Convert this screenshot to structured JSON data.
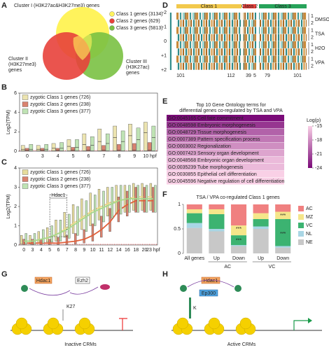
{
  "panels": [
    "A",
    "B",
    "C",
    "D",
    "E",
    "F",
    "G",
    "H"
  ],
  "a": {
    "title": "Cluster I (H3K27ac&H3K27me3) genes",
    "cluster2": [
      "Cluster II",
      "(H3K27me3)",
      "genes"
    ],
    "cluster3": [
      "Cluster III",
      "(H3K27ac)",
      "genes"
    ],
    "legend": [
      {
        "name": "Class 1 genes (3134)",
        "color": "#fff35c"
      },
      {
        "name": "Class 2 genes (629)",
        "color": "#e8413b"
      },
      {
        "name": "Class 3 genes (5813)",
        "color": "#7ac142"
      }
    ]
  },
  "b": {
    "type": "box",
    "ylabel": "Log2(TPM)",
    "categories": [
      "0",
      "3",
      "4",
      "5",
      "6",
      "7",
      "8",
      "9",
      "10 hpf"
    ],
    "ylim": [
      0,
      6
    ],
    "yticks": [
      0,
      2,
      4,
      6
    ],
    "series": [
      {
        "name": "zygotic Class 1 genes (726)",
        "color": "#ece4b0",
        "q1": [
          0.05,
          0.05,
          0.05,
          0.05,
          0.05,
          0.05,
          0.05,
          0.05,
          0.05
        ],
        "median": [
          0.2,
          0.2,
          0.3,
          0.5,
          0.7,
          1.0,
          1.4,
          1.6,
          1.9
        ],
        "q3": [
          0.6,
          0.6,
          0.8,
          1.2,
          1.8,
          2.3,
          2.6,
          2.8,
          3.0
        ]
      },
      {
        "name": "zygotic Class 2 genes (238)",
        "color": "#d9826f",
        "q1": [
          0.02,
          0.02,
          0.02,
          0.02,
          0.02,
          0.02,
          0.02,
          0.02,
          0.02
        ],
        "median": [
          0.1,
          0.1,
          0.1,
          0.1,
          0.1,
          0.1,
          0.1,
          0.1,
          0.1
        ],
        "q3": [
          0.3,
          0.3,
          0.3,
          0.4,
          0.5,
          0.6,
          0.7,
          0.8,
          0.9
        ]
      },
      {
        "name": "zygotic Class 3 genes (377)",
        "color": "#bfe3b4",
        "q1": [
          0.05,
          0.05,
          0.05,
          0.05,
          0.05,
          0.05,
          0.05,
          0.05,
          0.05
        ],
        "median": [
          0.2,
          0.2,
          0.3,
          0.4,
          0.6,
          0.8,
          1.0,
          1.2,
          1.4
        ],
        "q3": [
          0.7,
          0.7,
          0.9,
          1.2,
          1.5,
          1.8,
          2.1,
          2.4,
          2.6
        ]
      }
    ]
  },
  "c": {
    "type": "box-line",
    "ylabel": "Log2(TPM)",
    "categories": [
      "0",
      "3",
      "4",
      "5",
      "6",
      "7",
      "8",
      "9",
      "10",
      "11",
      "12",
      "14",
      "16",
      "18",
      "20",
      "23 hpf"
    ],
    "ylim": [
      0,
      4
    ],
    "yticks": [
      0,
      1,
      2,
      3,
      4
    ],
    "annotation": "Hdac1",
    "series": [
      {
        "name": "zygotic Class 1 genes (726)",
        "color": "#e6dc9c",
        "line": "#ecd98a",
        "q1": [
          0.05,
          0.05,
          0.1,
          0.15,
          0.2,
          0.4,
          0.6,
          0.8,
          1.0,
          1.3,
          1.5,
          1.6,
          1.7,
          1.8,
          1.8,
          1.8
        ],
        "values": [
          0.2,
          0.2,
          0.3,
          0.4,
          0.6,
          0.9,
          1.2,
          1.5,
          1.8,
          2.0,
          2.2,
          2.3,
          2.4,
          2.5,
          2.5,
          2.5
        ],
        "q3": [
          0.5,
          0.5,
          0.7,
          0.9,
          1.3,
          1.7,
          2.1,
          2.4,
          2.7,
          2.9,
          3.0,
          3.1,
          3.1,
          3.2,
          3.2,
          3.2
        ]
      },
      {
        "name": "zygotic Class 2 genes (238)",
        "color": "#d9826f",
        "line": "#e0603a",
        "q1": [
          0.02,
          0.02,
          0.02,
          0.02,
          0.02,
          0.03,
          0.05,
          0.1,
          0.2,
          0.4,
          0.7,
          1.2,
          1.5,
          1.7,
          1.7,
          1.7
        ],
        "values": [
          0.1,
          0.1,
          0.1,
          0.1,
          0.1,
          0.15,
          0.2,
          0.3,
          0.5,
          0.8,
          1.2,
          1.8,
          2.1,
          2.3,
          2.3,
          2.3
        ],
        "q3": [
          0.3,
          0.3,
          0.3,
          0.3,
          0.4,
          0.5,
          0.6,
          0.8,
          1.1,
          1.5,
          1.9,
          2.5,
          2.8,
          3.0,
          3.0,
          3.0
        ]
      },
      {
        "name": "zygotic Class 3 genes (377)",
        "color": "#bfe3b4",
        "line": "#a8d98c",
        "q1": [
          0.05,
          0.05,
          0.1,
          0.15,
          0.2,
          0.35,
          0.5,
          0.7,
          1.0,
          1.2,
          1.4,
          1.6,
          1.7,
          1.7,
          1.7,
          1.7
        ],
        "values": [
          0.2,
          0.2,
          0.3,
          0.4,
          0.6,
          0.8,
          1.1,
          1.4,
          1.7,
          1.9,
          2.1,
          2.3,
          2.4,
          2.4,
          2.4,
          2.4
        ],
        "q3": [
          0.6,
          0.6,
          0.8,
          1.0,
          1.3,
          1.6,
          2.0,
          2.3,
          2.6,
          2.8,
          3.0,
          3.1,
          3.1,
          3.1,
          3.1,
          3.1
        ]
      }
    ]
  },
  "d": {
    "classes": [
      {
        "name": "Class 1",
        "color": "#f2c94c"
      },
      {
        "name": "Class 2",
        "color": "#e8413b"
      },
      {
        "name": "Class 3",
        "color": "#27a35a"
      }
    ],
    "conditions": [
      "DMSO",
      "TSA",
      "H2O",
      "VPA"
    ],
    "replicates": [
      "1",
      "2"
    ],
    "scale_labels": [
      "-2",
      "-1",
      "0",
      "+1",
      "+2"
    ],
    "counts": [
      "101",
      "112",
      "39",
      "5",
      "79",
      "101"
    ]
  },
  "e": {
    "type": "heat-list",
    "title": [
      "Top 10 Gene Ontology terms for",
      "differential genes co-regulated by TSA and VPA"
    ],
    "terms": [
      "GO:0045165 Cell fate commitment",
      "GO:0048598 Embryonic morphogenesis",
      "GO:0048729 Tissue morphogenesis",
      "GO:0007389 Pattern specification process",
      "GO:0003002 Regionalization",
      "GO:0007423 Sensory organ development",
      "GO:0048568 Embryonic organ development",
      "GO:0035239 Tube morphogenesis",
      "GO:0030855 Epithelial cell differentiation",
      "GO:0045596 Negative regulation of cell differentiation"
    ],
    "values": [
      -24,
      -22,
      -20,
      -19,
      -18,
      -17,
      -16,
      -16,
      -15,
      -15
    ],
    "colorbar_label": "Log(p)",
    "clim": [
      -24,
      -15
    ],
    "cticks": [
      -15,
      -18,
      -21,
      -24
    ],
    "colors": [
      "#f9d0e6",
      "#7a0a78"
    ]
  },
  "f": {
    "type": "stacked-bar",
    "title": "TSA / VPA co-regulated Class 1 genes",
    "categories": [
      "All genes",
      "Up",
      "Down",
      "Up",
      "Down"
    ],
    "groups": [
      "AC",
      "VC"
    ],
    "ylim": [
      0,
      1
    ],
    "yticks": [
      0,
      0.5,
      1
    ],
    "star_labels": [
      "***",
      "***",
      "***",
      "***"
    ],
    "series": [
      {
        "name": "NE",
        "color": "#c8c8c8",
        "values": [
          0.52,
          0.45,
          0.15,
          0.5,
          0.12
        ]
      },
      {
        "name": "NL",
        "color": "#a9d6e5",
        "values": [
          0.1,
          0.05,
          0.02,
          0.05,
          0.03
        ]
      },
      {
        "name": "VC",
        "color": "#3cb371",
        "values": [
          0.2,
          0.3,
          0.2,
          0.15,
          0.55
        ]
      },
      {
        "name": "MZ",
        "color": "#f5e68a",
        "values": [
          0.08,
          0.1,
          0.2,
          0.12,
          0.15
        ]
      },
      {
        "name": "AC",
        "color": "#f08080",
        "values": [
          0.1,
          0.1,
          0.43,
          0.18,
          0.15
        ]
      }
    ]
  },
  "g": {
    "hdac": "Hdac1",
    "ezh": "Ezh2",
    "mark": "K27",
    "caption": "Inactive CRMs"
  },
  "h": {
    "hdac": "Hdac1",
    "ep": "Ep300",
    "mark": "K",
    "caption": "Active CRMs"
  }
}
